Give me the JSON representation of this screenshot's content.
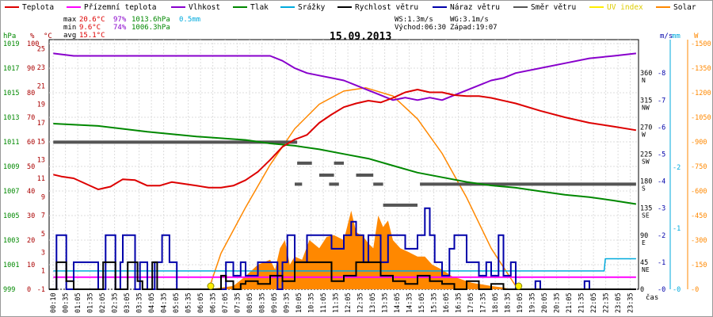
{
  "chart_data": {
    "type": "line",
    "title": "15.09.2013",
    "legend": [
      {
        "label": "Teplota",
        "color": "#dd0000"
      },
      {
        "label": "Přízemní teplota",
        "color": "#ff00ff"
      },
      {
        "label": "Vlhkost",
        "color": "#8800cc"
      },
      {
        "label": "Tlak",
        "color": "#008800"
      },
      {
        "label": "Srážky",
        "color": "#00aadd"
      },
      {
        "label": "Rychlost větru",
        "color": "#000000"
      },
      {
        "label": "Náraz větru",
        "color": "#0000aa"
      },
      {
        "label": "Směr větru",
        "color": "#555555"
      },
      {
        "label": "UV index",
        "color": "#ffee00"
      },
      {
        "label": "Solar",
        "color": "#ff8800"
      }
    ],
    "stats": {
      "max_label": "max",
      "max_temp": "20.6°C",
      "max_hum": "97%",
      "max_press": "1013.6hPa",
      "max_rain": "0.5mm",
      "min_label": "min",
      "min_temp": "9.6°C",
      "min_hum": "74%",
      "min_press": "1006.3hPa",
      "avg_label": "avg",
      "avg_temp": "15.1°C",
      "ws": "WS:1.3m/s",
      "wg": "WG:3.1m/s",
      "sunrise": "Východ:06:30",
      "sunset": "Západ:19:07"
    },
    "xlabel": "čas",
    "x_ticks": [
      "00:10",
      "00:35",
      "01:05",
      "01:35",
      "02:05",
      "02:35",
      "03:05",
      "03:35",
      "04:05",
      "04:35",
      "05:05",
      "05:35",
      "06:05",
      "06:35",
      "07:05",
      "07:35",
      "08:05",
      "08:35",
      "09:05",
      "09:35",
      "10:05",
      "10:35",
      "11:05",
      "11:35",
      "12:05",
      "12:35",
      "13:05",
      "13:35",
      "14:05",
      "14:35",
      "15:05",
      "15:35",
      "16:05",
      "16:35",
      "17:05",
      "17:35",
      "18:05",
      "18:35",
      "19:05",
      "19:35",
      "20:05",
      "20:35",
      "21:05",
      "21:35",
      "22:05",
      "22:35",
      "23:05",
      "23:35"
    ],
    "axes": {
      "hpa": {
        "label": "hPa",
        "color": "#008800",
        "ticks": [
          "1019",
          "1017",
          "1015",
          "1013",
          "1011",
          "1009",
          "1007",
          "1005",
          "1003",
          "1001",
          "999"
        ]
      },
      "pct": {
        "label": "%",
        "color": "#aa0000",
        "ticks": [
          "100",
          "90",
          "80",
          "70",
          "60",
          "50",
          "40",
          "30",
          "20",
          "10",
          "0"
        ]
      },
      "degc": {
        "label": "°C",
        "color": "#aa0000",
        "ticks": [
          "25",
          "23",
          "21",
          "19",
          "17",
          "15",
          "13",
          "11",
          "9",
          "7",
          "5",
          "3",
          "1",
          "-1"
        ]
      },
      "dir": {
        "ticks": [
          "360",
          "315",
          "270",
          "225",
          "180",
          "135",
          "90",
          "45",
          "0"
        ],
        "names": [
          "N",
          "NW",
          "W",
          "SW",
          "S",
          "SE",
          "E",
          "NE",
          ""
        ]
      },
      "ms": {
        "label": "m/s",
        "color": "#0000aa",
        "ticks": [
          "8",
          "7",
          "6",
          "5",
          "4",
          "3",
          "2",
          "1",
          "0"
        ]
      },
      "mm": {
        "label": "mm",
        "color": "#00aadd",
        "ticks": [
          "2",
          "1",
          "0"
        ]
      },
      "w": {
        "label": "W",
        "color": "#ff8800",
        "ticks": [
          "1500",
          "1350",
          "1200",
          "1050",
          "900",
          "750",
          "600",
          "450",
          "300",
          "150",
          "0"
        ]
      }
    },
    "temp_range": [
      -1,
      26
    ],
    "series": [
      {
        "name": "Teplota",
        "unit": "°C",
        "color": "#dd0000",
        "x": [
          0.17,
          0.5,
          1,
          1.5,
          2,
          2.5,
          3,
          3.5,
          4,
          4.5,
          5,
          5.5,
          6,
          6.5,
          7,
          7.5,
          8,
          8.5,
          9,
          9.5,
          10,
          10.5,
          11,
          11.5,
          12,
          12.5,
          13,
          13.5,
          14,
          14.5,
          15,
          15.5,
          16,
          16.5,
          17,
          17.5,
          18,
          19,
          20,
          21,
          22,
          23,
          23.9
        ],
        "y": [
          11.4,
          11.2,
          11.0,
          10.4,
          9.8,
          10.1,
          10.9,
          10.8,
          10.2,
          10.2,
          10.6,
          10.4,
          10.2,
          10.0,
          10.0,
          10.2,
          10.8,
          11.7,
          13.0,
          14.4,
          15.2,
          15.7,
          17.0,
          17.9,
          18.7,
          19.1,
          19.4,
          19.2,
          19.7,
          20.3,
          20.6,
          20.3,
          20.3,
          20.0,
          19.9,
          19.9,
          19.7,
          19.1,
          18.3,
          17.6,
          17.0,
          16.6,
          16.2
        ]
      },
      {
        "name": "Přízemní teplota",
        "unit": "°C",
        "color": "#ff00ff",
        "x": [
          0.17,
          23.9
        ],
        "y": [
          0.3,
          0.3
        ]
      },
      {
        "name": "Vlhkost",
        "unit": "%",
        "color": "#8800cc",
        "x": [
          0.17,
          1,
          4,
          9,
          9.5,
          10,
          10.5,
          11,
          11.5,
          12,
          12.5,
          13,
          13.5,
          14,
          14.5,
          15,
          15.5,
          16,
          16.5,
          17,
          17.5,
          18,
          18.5,
          19,
          20,
          21,
          22,
          23,
          23.9
        ],
        "y": [
          96,
          95,
          95,
          95,
          93,
          90,
          88,
          87,
          86,
          85,
          83,
          81,
          79,
          77,
          78,
          77,
          78,
          77,
          79,
          81,
          83,
          85,
          86,
          88,
          90,
          92,
          94,
          95,
          96
        ]
      },
      {
        "name": "Tlak",
        "unit": "hPa",
        "color": "#008800",
        "x": [
          0.17,
          2,
          4,
          6,
          8,
          9,
          10,
          11,
          12,
          13,
          14,
          15,
          16,
          17,
          18,
          19,
          20,
          21,
          22,
          23,
          23.9
        ],
        "y": [
          1013.2,
          1013.0,
          1012.5,
          1012.1,
          1011.8,
          1011.5,
          1011.3,
          1011.0,
          1010.6,
          1010.2,
          1009.6,
          1009.0,
          1008.6,
          1008.2,
          1007.9,
          1007.7,
          1007.4,
          1007.1,
          1006.9,
          1006.6,
          1006.3
        ]
      },
      {
        "name": "Srážky",
        "unit": "mm",
        "color": "#00aadd",
        "x": [
          0.17,
          22.6,
          22.65,
          23.9
        ],
        "y": [
          0.3,
          0.3,
          0.5,
          0.5
        ]
      },
      {
        "name": "Rychlost větru",
        "unit": "m/s",
        "color": "#000000",
        "x": [
          0,
          0.3,
          0.5,
          0.7,
          1.0,
          2.0,
          2.2,
          2.5,
          2.7,
          3.0,
          3.2,
          3.4,
          3.6,
          3.8,
          4.0,
          4.2,
          4.4,
          6.5,
          7.0,
          7.2,
          7.5,
          7.8,
          8.0,
          8.5,
          9.0,
          9.5,
          10.0,
          10.5,
          11.0,
          11.5,
          12.0,
          12.5,
          13.0,
          13.5,
          14.0,
          14.5,
          15.0,
          15.5,
          16.0,
          16.5,
          17.0,
          17.5,
          18.0,
          18.5,
          19.0,
          23.9
        ],
        "y": [
          0,
          1,
          1,
          0.3,
          0,
          0,
          1,
          1,
          0,
          0,
          1,
          1,
          0.3,
          0,
          0,
          1,
          0,
          0,
          0.5,
          0.3,
          0,
          0.2,
          0.3,
          0.2,
          0.5,
          0.3,
          1,
          1,
          1,
          0.3,
          0.5,
          1,
          1,
          0.5,
          0.3,
          0.2,
          0.5,
          0.3,
          0.2,
          0,
          0.3,
          0,
          0.2,
          0,
          0,
          0
        ]
      },
      {
        "name": "Náraz větru",
        "unit": "m/s",
        "color": "#0000aa",
        "x": [
          0,
          0.3,
          0.5,
          0.7,
          0.9,
          1.0,
          1.5,
          2.0,
          2.3,
          2.5,
          2.7,
          2.9,
          3.0,
          3.2,
          3.5,
          3.7,
          4.0,
          4.3,
          4.6,
          4.9,
          5.2,
          5.5,
          6.0,
          6.5,
          7.0,
          7.2,
          7.5,
          7.8,
          8.0,
          8.5,
          9.0,
          9.3,
          9.5,
          9.7,
          10.0,
          10.5,
          11.0,
          11.5,
          12.0,
          12.3,
          12.5,
          12.8,
          13.0,
          13.3,
          13.5,
          13.8,
          14.0,
          14.5,
          15.0,
          15.3,
          15.5,
          15.7,
          16.0,
          16.3,
          16.5,
          17.0,
          17.5,
          17.8,
          18.0,
          18.3,
          18.5,
          18.8,
          19.0,
          19.5,
          19.8,
          20.0,
          20.2,
          21.5,
          21.8,
          22.0,
          23.5,
          23.9
        ],
        "y": [
          0,
          2,
          2,
          0,
          0,
          1,
          1,
          0,
          2,
          2,
          0,
          1,
          2,
          2,
          0,
          1,
          0,
          1,
          2,
          1,
          0,
          0,
          0,
          0,
          0,
          1,
          0.5,
          1,
          0.5,
          1,
          1,
          0,
          1,
          2,
          1,
          2,
          2,
          1.5,
          2,
          2.5,
          2,
          1,
          2,
          2,
          1,
          2,
          2,
          1.5,
          2,
          3,
          2,
          1,
          0.5,
          1.5,
          2,
          1,
          0.5,
          1,
          0.5,
          2,
          0.5,
          1,
          0,
          0,
          0.3,
          0,
          0,
          0,
          0.3,
          0,
          0,
          0
        ]
      },
      {
        "name": "Směr větru",
        "unit": "°",
        "color": "#555555",
        "segments": [
          [
            0.17,
            10.1,
            245
          ],
          [
            10.1,
            10.7,
            210
          ],
          [
            11.6,
            12.0,
            210
          ],
          [
            11.0,
            11.6,
            190
          ],
          [
            12.5,
            13.2,
            190
          ],
          [
            10.0,
            10.3,
            175
          ],
          [
            11.4,
            11.8,
            175
          ],
          [
            13.2,
            13.6,
            175
          ],
          [
            13.6,
            15.0,
            140
          ],
          [
            15.1,
            23.9,
            175
          ]
        ]
      },
      {
        "name": "Solar",
        "unit": "W",
        "color": "#ff8800",
        "curve_x": [
          6.5,
          7,
          8,
          9,
          10,
          11,
          12,
          12.9,
          14,
          15,
          16,
          17,
          18,
          19,
          19.1
        ],
        "curve_y": [
          0,
          220,
          500,
          760,
          980,
          1130,
          1210,
          1230,
          1180,
          1040,
          830,
          560,
          250,
          20,
          0
        ],
        "fill_x": [
          6.5,
          7.5,
          8.0,
          8.5,
          9.0,
          9.2,
          9.4,
          9.6,
          9.8,
          10.0,
          10.3,
          10.6,
          11.0,
          11.3,
          11.6,
          12.0,
          12.3,
          12.5,
          12.8,
          13.0,
          13.2,
          13.4,
          13.6,
          13.8,
          14.0,
          14.3,
          14.6,
          15.0,
          15.3,
          15.6,
          16.0,
          16.4,
          16.8,
          17.2,
          17.6,
          18.0,
          18.5,
          18.8
        ],
        "fill_y": [
          0,
          20,
          80,
          150,
          180,
          120,
          250,
          300,
          150,
          200,
          180,
          300,
          250,
          320,
          330,
          300,
          480,
          350,
          320,
          280,
          250,
          450,
          380,
          420,
          300,
          250,
          230,
          200,
          200,
          150,
          120,
          80,
          60,
          40,
          30,
          20,
          10,
          0
        ]
      },
      {
        "name": "UV index",
        "unit": "",
        "color": "#ffee00",
        "points_x": [
          6.58,
          19.12
        ],
        "points_y": [
          0,
          0
        ]
      }
    ]
  }
}
